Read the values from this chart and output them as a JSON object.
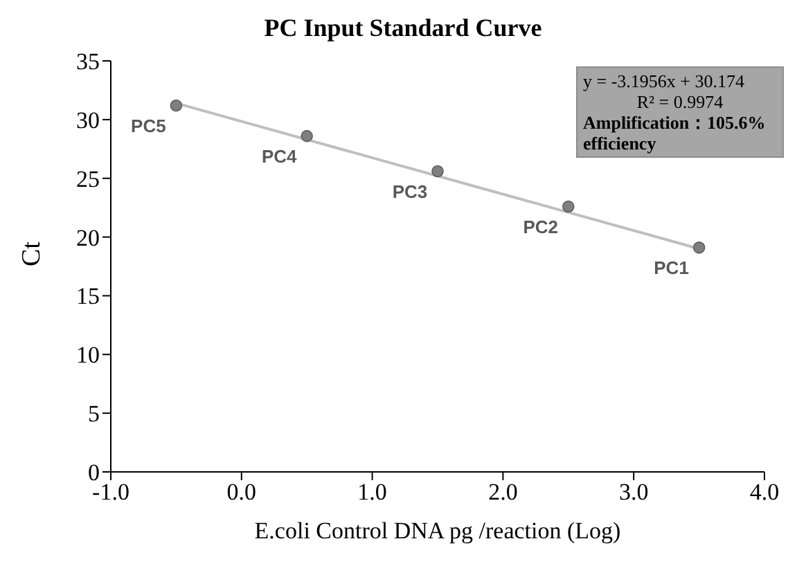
{
  "chart_data": {
    "type": "scatter",
    "title": "PC Input Standard Curve",
    "xlabel": "E.coli Control DNA pg /reaction (Log)",
    "ylabel": "Ct",
    "x": [
      -0.5,
      0.5,
      1.5,
      2.5,
      3.5
    ],
    "series": [
      {
        "color": "#7f7f7f",
        "values": [
          31.2,
          28.6,
          25.6,
          22.6,
          19.1
        ]
      },
      {
        "type": "line",
        "color": "#bfbfbf",
        "x": [
          -0.5,
          3.5
        ],
        "values": [
          31.4,
          19.0
        ],
        "marker": "none"
      }
    ],
    "xlim": [
      -1,
      4
    ],
    "xticks": [
      {
        "value": -1,
        "label": "-1.0"
      },
      {
        "value": 0,
        "label": "0.0"
      },
      {
        "value": 1,
        "label": "1.0"
      },
      {
        "value": 2,
        "label": "2.0"
      },
      {
        "value": 3,
        "label": "3.0"
      },
      {
        "value": 4,
        "label": "4.0"
      }
    ],
    "ylim": [
      0,
      35
    ],
    "yticks": [
      0,
      5,
      10,
      15,
      20,
      25,
      30,
      35
    ],
    "marker": "circle",
    "grid": false,
    "legend": false,
    "annotations": [
      {
        "text": "PC5",
        "x": -0.5,
        "y": 31.2
      },
      {
        "text": "PC4",
        "x": 0.5,
        "y": 28.6
      },
      {
        "text": "PC3",
        "x": 1.5,
        "y": 25.6
      },
      {
        "text": "PC2",
        "x": 2.5,
        "y": 22.6
      },
      {
        "text": "PC1",
        "x": 3.5,
        "y": 19.1
      },
      "y = -3.1956x + 30.174",
      "R² = 0.9974",
      "Amplification：105.6% efficiency"
    ]
  }
}
